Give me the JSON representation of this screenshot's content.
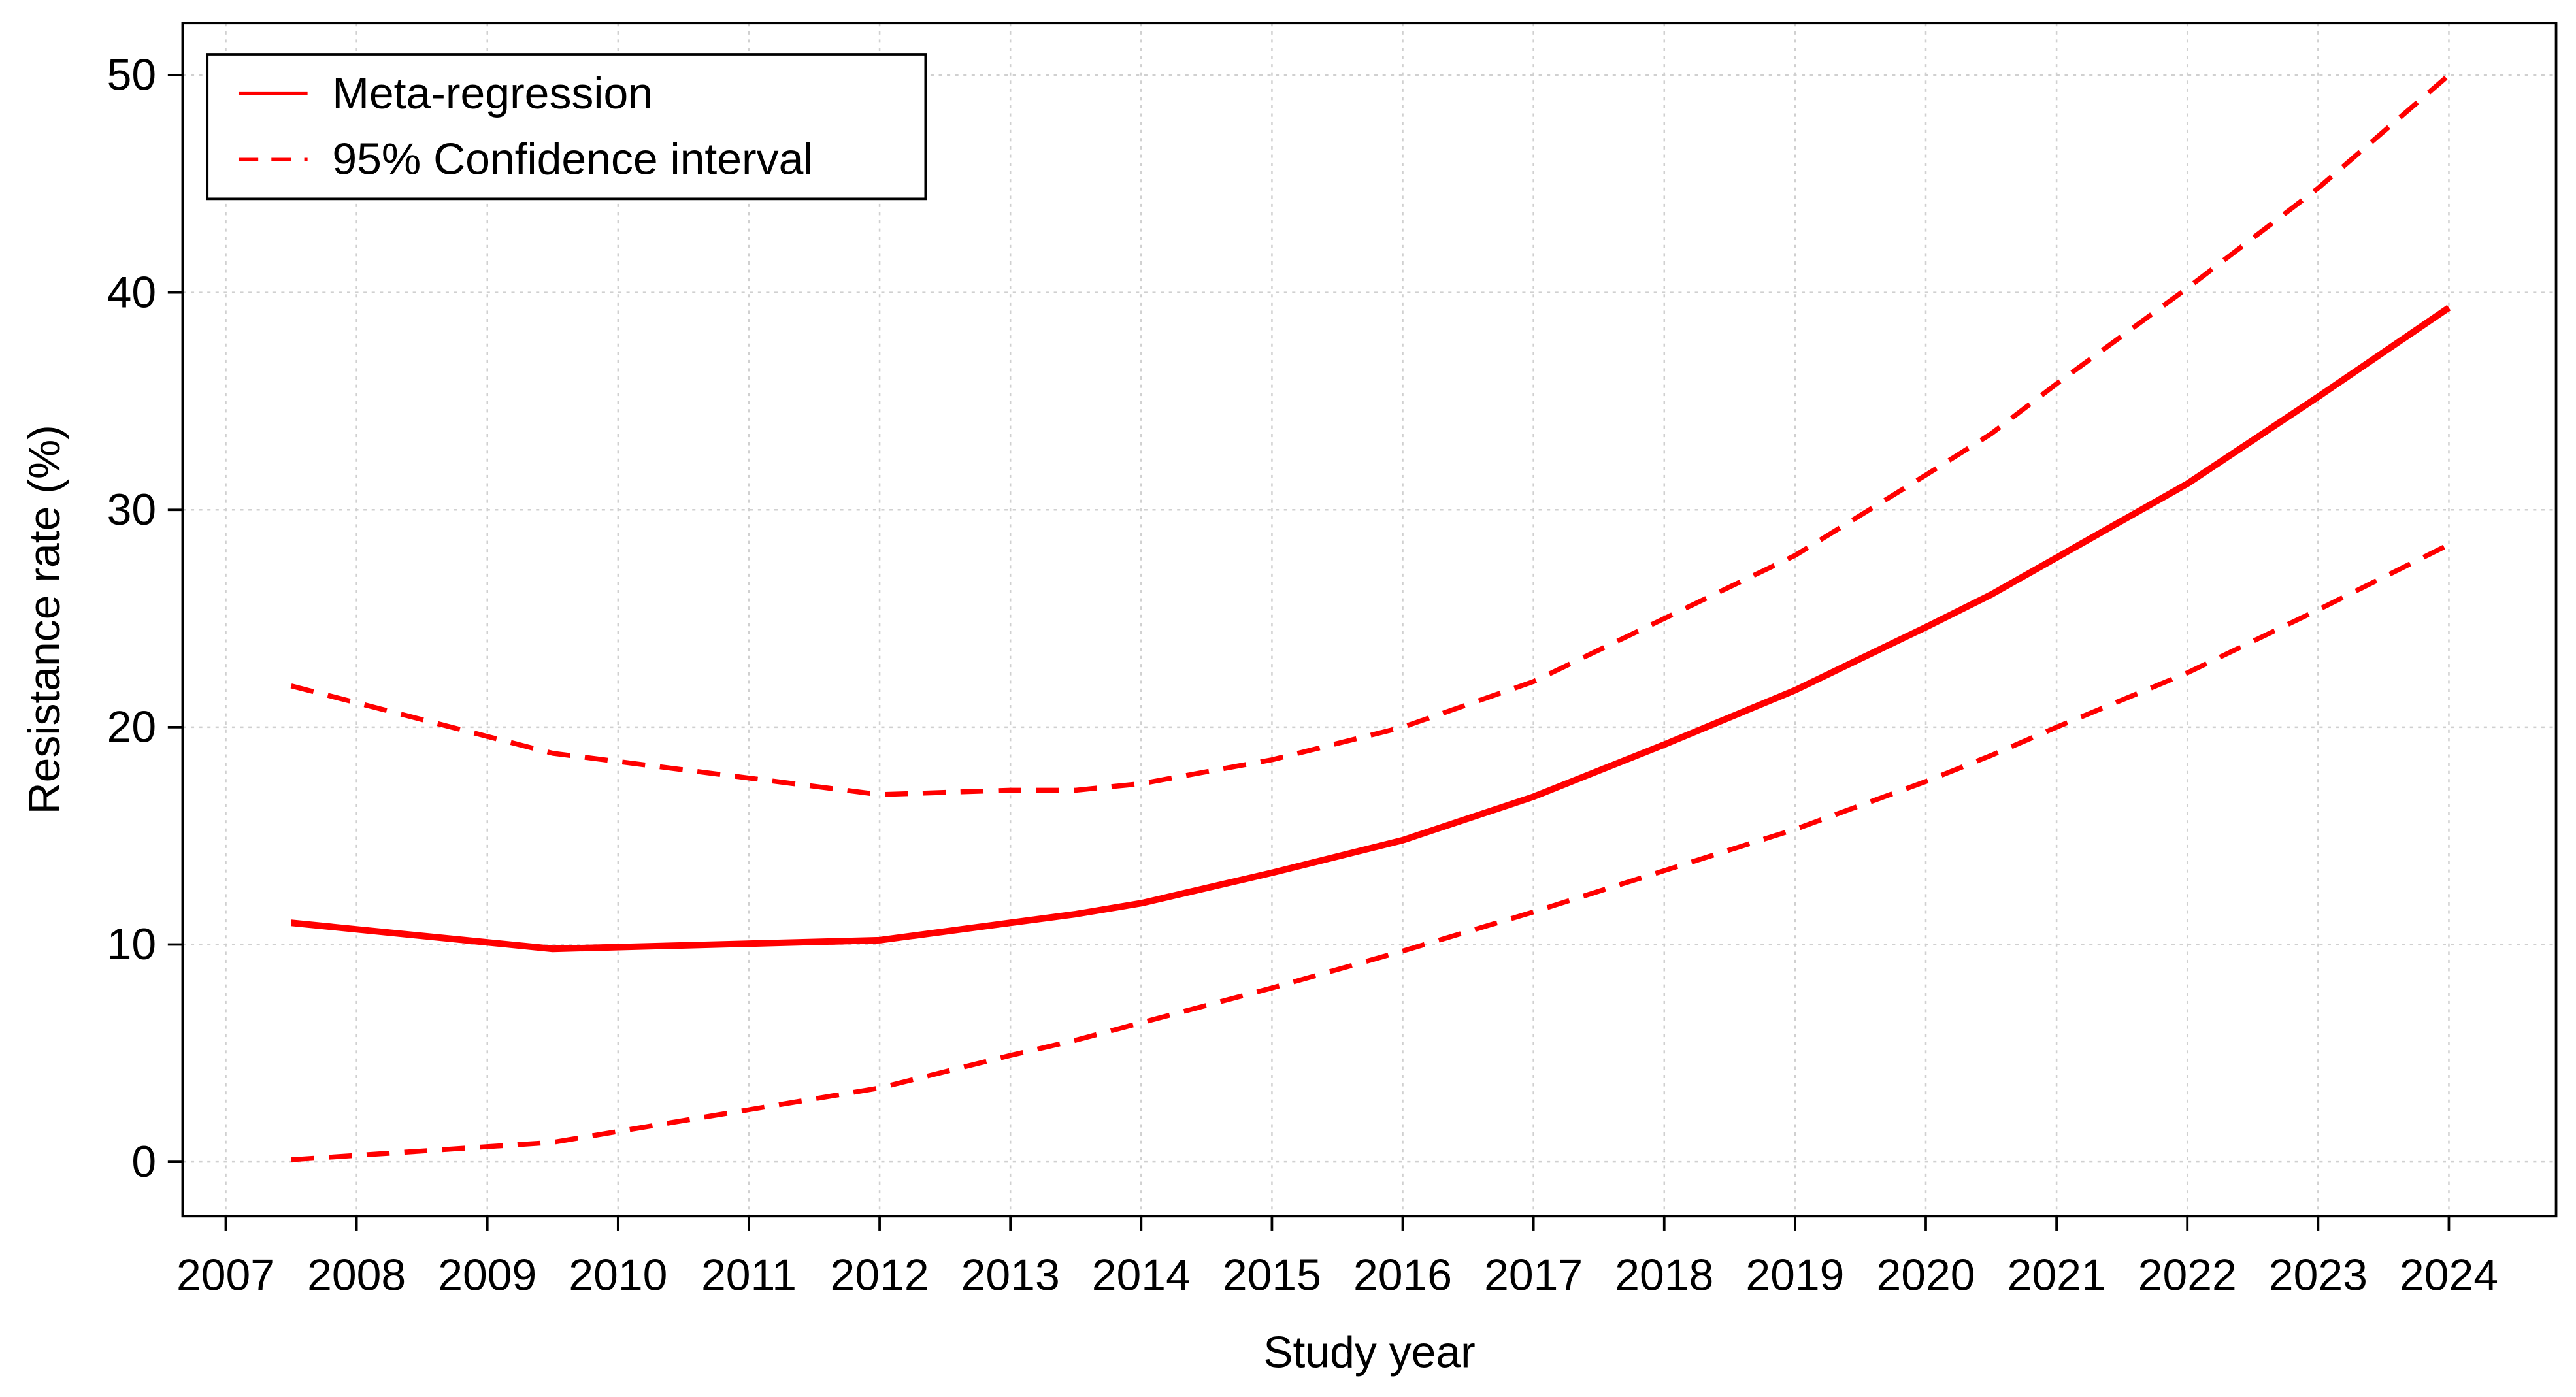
{
  "chart_data": {
    "type": "line",
    "xlabel": "Study year",
    "ylabel": "Resistance rate (%)",
    "x": [
      2007.5,
      2009.5,
      2012,
      2013,
      2013.5,
      2014,
      2015,
      2016,
      2017,
      2018,
      2019,
      2020,
      2020.5,
      2021,
      2022,
      2023,
      2024
    ],
    "series": [
      {
        "name": "Meta-regression",
        "color": "#ff0000",
        "style": "solid",
        "values": [
          11.0,
          9.8,
          10.2,
          11.0,
          11.4,
          11.9,
          13.3,
          14.8,
          16.8,
          19.2,
          21.7,
          24.6,
          26.1,
          27.8,
          31.2,
          35.2,
          39.3
        ]
      },
      {
        "name": "95% Confidence interval",
        "color": "#ff0000",
        "style": "dashed",
        "upper": [
          21.9,
          18.8,
          16.9,
          17.1,
          17.1,
          17.4,
          18.5,
          20.0,
          22.1,
          25.0,
          27.9,
          31.6,
          33.5,
          35.8,
          40.2,
          44.8,
          50.0
        ],
        "lower": [
          0.1,
          0.9,
          3.4,
          4.9,
          5.6,
          6.4,
          8.0,
          9.7,
          11.5,
          13.4,
          15.3,
          17.5,
          18.7,
          20.0,
          22.5,
          25.4,
          28.4
        ]
      }
    ],
    "xlim": [
      2006.67,
      2024.82
    ],
    "ylim": [
      -2.5,
      52.4
    ],
    "xticks": [
      2007,
      2008,
      2009,
      2010,
      2011,
      2012,
      2013,
      2014,
      2015,
      2016,
      2017,
      2018,
      2019,
      2020,
      2021,
      2022,
      2023,
      2024
    ],
    "yticks": [
      0,
      10,
      20,
      30,
      40,
      50
    ],
    "grid": true,
    "legend": "upper left"
  }
}
